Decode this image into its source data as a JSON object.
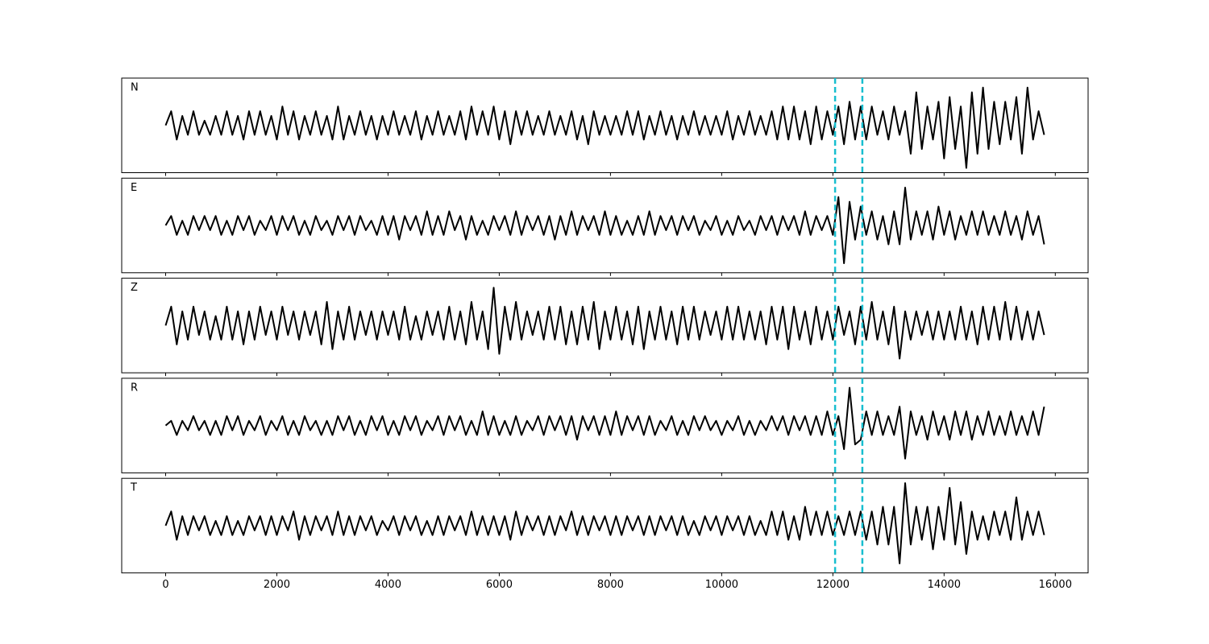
{
  "chart_data": {
    "type": "line",
    "x": [
      0,
      100,
      200,
      300,
      400,
      500,
      600,
      700,
      800,
      900,
      1000,
      1100,
      1200,
      1300,
      1400,
      1500,
      1600,
      1700,
      1800,
      1900,
      2000,
      2100,
      2200,
      2300,
      2400,
      2500,
      2600,
      2700,
      2800,
      2900,
      3000,
      3100,
      3200,
      3300,
      3400,
      3500,
      3600,
      3700,
      3800,
      3900,
      4000,
      4100,
      4200,
      4300,
      4400,
      4500,
      4600,
      4700,
      4800,
      4900,
      5000,
      5100,
      5200,
      5300,
      5400,
      5500,
      5600,
      5700,
      5800,
      5900,
      6000,
      6100,
      6200,
      6300,
      6400,
      6500,
      6600,
      6700,
      6800,
      6900,
      7000,
      7100,
      7200,
      7300,
      7400,
      7500,
      7600,
      7700,
      7800,
      7900,
      8000,
      8100,
      8200,
      8300,
      8400,
      8500,
      8600,
      8700,
      8800,
      8900,
      9000,
      9100,
      9200,
      9300,
      9400,
      9500,
      9600,
      9700,
      9800,
      9900,
      10000,
      10100,
      10200,
      10300,
      10400,
      10500,
      10600,
      10700,
      10800,
      10900,
      11000,
      11100,
      11200,
      11300,
      11400,
      11500,
      11600,
      11700,
      11800,
      11900,
      12000,
      12100,
      12200,
      12300,
      12400,
      12500,
      12600,
      12700,
      12800,
      12900,
      13000,
      13100,
      13200,
      13300,
      13400,
      13500,
      13600,
      13700,
      13800,
      13900,
      14000,
      14100,
      14200,
      14300,
      14400,
      14500,
      14600,
      14700,
      14800,
      14900,
      15000,
      15100,
      15200,
      15300,
      15400,
      15500,
      15600,
      15700,
      15800
    ],
    "xlim": [
      -790,
      16590
    ],
    "xticks": [
      0,
      2000,
      4000,
      6000,
      8000,
      10000,
      12000,
      14000,
      16000
    ],
    "ylim": [
      -1,
      1
    ],
    "color": "#000000",
    "marker_color": "#17becf",
    "markers": [
      12040,
      12530
    ],
    "panels": [
      {
        "label": "N",
        "values": [
          0,
          0.3,
          -0.3,
          0.2,
          -0.2,
          0.3,
          -0.2,
          0.1,
          -0.2,
          0.2,
          -0.2,
          0.3,
          -0.2,
          0.2,
          -0.3,
          0.3,
          -0.2,
          0.3,
          -0.2,
          0.2,
          -0.3,
          0.4,
          -0.2,
          0.3,
          -0.3,
          0.2,
          -0.2,
          0.3,
          -0.2,
          0.2,
          -0.3,
          0.4,
          -0.3,
          0.2,
          -0.2,
          0.3,
          -0.2,
          0.2,
          -0.3,
          0.2,
          -0.2,
          0.3,
          -0.2,
          0.2,
          -0.2,
          0.3,
          -0.3,
          0.2,
          -0.2,
          0.3,
          -0.2,
          0.2,
          -0.2,
          0.3,
          -0.3,
          0.4,
          -0.2,
          0.3,
          -0.2,
          0.4,
          -0.3,
          0.3,
          -0.4,
          0.3,
          -0.2,
          0.3,
          -0.2,
          0.2,
          -0.2,
          0.3,
          -0.2,
          0.2,
          -0.2,
          0.3,
          -0.3,
          0.2,
          -0.4,
          0.3,
          -0.2,
          0.2,
          -0.2,
          0.2,
          -0.2,
          0.3,
          -0.2,
          0.3,
          -0.3,
          0.2,
          -0.2,
          0.3,
          -0.2,
          0.2,
          -0.3,
          0.2,
          -0.2,
          0.3,
          -0.2,
          0.2,
          -0.2,
          0.2,
          -0.2,
          0.3,
          -0.3,
          0.2,
          -0.2,
          0.3,
          -0.2,
          0.2,
          -0.2,
          0.3,
          -0.3,
          0.4,
          -0.3,
          0.4,
          -0.3,
          0.3,
          -0.4,
          0.4,
          -0.3,
          0.3,
          -0.2,
          0.4,
          -0.4,
          0.5,
          -0.3,
          0.4,
          -0.3,
          0.4,
          -0.2,
          0.3,
          -0.3,
          0.4,
          -0.2,
          0.3,
          -0.6,
          0.7,
          -0.5,
          0.4,
          -0.3,
          0.5,
          -0.7,
          0.6,
          -0.5,
          0.4,
          -0.9,
          0.7,
          -0.6,
          0.8,
          -0.5,
          0.5,
          -0.4,
          0.5,
          -0.3,
          0.6,
          -0.6,
          0.8,
          -0.3,
          0.3,
          -0.2
        ]
      },
      {
        "label": "E",
        "values": [
          0,
          0.2,
          -0.2,
          0.1,
          -0.2,
          0.2,
          -0.1,
          0.2,
          -0.1,
          0.2,
          -0.2,
          0.1,
          -0.2,
          0.2,
          -0.1,
          0.2,
          -0.2,
          0.1,
          -0.1,
          0.2,
          -0.2,
          0.2,
          -0.1,
          0.2,
          -0.2,
          0.1,
          -0.2,
          0.2,
          -0.1,
          0.1,
          -0.2,
          0.2,
          -0.1,
          0.2,
          -0.2,
          0.2,
          -0.1,
          0.1,
          -0.2,
          0.2,
          -0.2,
          0.2,
          -0.3,
          0.2,
          -0.1,
          0.2,
          -0.2,
          0.3,
          -0.2,
          0.2,
          -0.2,
          0.3,
          -0.1,
          0.2,
          -0.3,
          0.2,
          -0.2,
          0.1,
          -0.2,
          0.2,
          -0.1,
          0.2,
          -0.2,
          0.3,
          -0.2,
          0.2,
          -0.1,
          0.2,
          -0.2,
          0.2,
          -0.3,
          0.2,
          -0.2,
          0.3,
          -0.2,
          0.2,
          -0.1,
          0.2,
          -0.2,
          0.3,
          -0.2,
          0.2,
          -0.2,
          0.1,
          -0.2,
          0.2,
          -0.2,
          0.3,
          -0.2,
          0.2,
          -0.1,
          0.2,
          -0.2,
          0.2,
          -0.1,
          0.2,
          -0.2,
          0.1,
          -0.1,
          0.2,
          -0.2,
          0.1,
          -0.2,
          0.2,
          -0.1,
          0.1,
          -0.2,
          0.2,
          -0.1,
          0.2,
          -0.2,
          0.2,
          -0.1,
          0.2,
          -0.2,
          0.3,
          -0.2,
          0.2,
          -0.1,
          0.2,
          -0.2,
          0.6,
          -0.8,
          0.5,
          -0.3,
          0.4,
          -0.2,
          0.3,
          -0.3,
          0.2,
          -0.4,
          0.3,
          -0.4,
          0.8,
          -0.3,
          0.3,
          -0.2,
          0.3,
          -0.3,
          0.4,
          -0.2,
          0.3,
          -0.3,
          0.2,
          -0.2,
          0.3,
          -0.2,
          0.3,
          -0.2,
          0.2,
          -0.2,
          0.3,
          -0.2,
          0.2,
          -0.3,
          0.3,
          -0.2,
          0.2,
          -0.4
        ]
      },
      {
        "label": "Z",
        "values": [
          0,
          0.4,
          -0.4,
          0.3,
          -0.3,
          0.4,
          -0.2,
          0.3,
          -0.3,
          0.2,
          -0.3,
          0.4,
          -0.3,
          0.3,
          -0.4,
          0.3,
          -0.3,
          0.4,
          -0.2,
          0.3,
          -0.3,
          0.4,
          -0.2,
          0.3,
          -0.3,
          0.3,
          -0.2,
          0.3,
          -0.4,
          0.5,
          -0.5,
          0.3,
          -0.3,
          0.4,
          -0.3,
          0.3,
          -0.2,
          0.3,
          -0.3,
          0.3,
          -0.2,
          0.3,
          -0.3,
          0.4,
          -0.3,
          0.2,
          -0.3,
          0.3,
          -0.2,
          0.3,
          -0.3,
          0.4,
          -0.3,
          0.3,
          -0.4,
          0.5,
          -0.3,
          0.3,
          -0.5,
          0.8,
          -0.6,
          0.4,
          -0.3,
          0.5,
          -0.3,
          0.3,
          -0.2,
          0.3,
          -0.3,
          0.4,
          -0.3,
          0.4,
          -0.4,
          0.3,
          -0.4,
          0.4,
          -0.3,
          0.5,
          -0.5,
          0.3,
          -0.3,
          0.4,
          -0.3,
          0.3,
          -0.4,
          0.4,
          -0.5,
          0.3,
          -0.3,
          0.4,
          -0.3,
          0.3,
          -0.4,
          0.4,
          -0.3,
          0.4,
          -0.3,
          0.3,
          -0.2,
          0.3,
          -0.3,
          0.4,
          -0.3,
          0.4,
          -0.3,
          0.3,
          -0.3,
          0.3,
          -0.4,
          0.4,
          -0.3,
          0.4,
          -0.5,
          0.4,
          -0.3,
          0.3,
          -0.4,
          0.4,
          -0.3,
          0.3,
          -0.3,
          0.4,
          -0.2,
          0.3,
          -0.4,
          0.4,
          -0.3,
          0.5,
          -0.3,
          0.3,
          -0.4,
          0.4,
          -0.7,
          0.3,
          -0.3,
          0.3,
          -0.2,
          0.3,
          -0.3,
          0.3,
          -0.3,
          0.3,
          -0.3,
          0.4,
          -0.3,
          0.3,
          -0.4,
          0.4,
          -0.3,
          0.4,
          -0.3,
          0.5,
          -0.3,
          0.4,
          -0.3,
          0.3,
          -0.3,
          0.3,
          -0.2
        ]
      },
      {
        "label": "R",
        "values": [
          0,
          0.1,
          -0.2,
          0.1,
          -0.1,
          0.2,
          -0.1,
          0.1,
          -0.2,
          0.1,
          -0.2,
          0.2,
          -0.1,
          0.2,
          -0.2,
          0.1,
          -0.1,
          0.2,
          -0.2,
          0.1,
          -0.1,
          0.2,
          -0.2,
          0.1,
          -0.2,
          0.2,
          -0.1,
          0.1,
          -0.2,
          0.1,
          -0.2,
          0.2,
          -0.1,
          0.2,
          -0.2,
          0.1,
          -0.2,
          0.2,
          -0.1,
          0.2,
          -0.2,
          0.1,
          -0.2,
          0.2,
          -0.1,
          0.2,
          -0.2,
          0.1,
          -0.1,
          0.2,
          -0.2,
          0.2,
          -0.1,
          0.2,
          -0.2,
          0.1,
          -0.2,
          0.3,
          -0.2,
          0.2,
          -0.2,
          0.1,
          -0.2,
          0.2,
          -0.2,
          0.1,
          -0.1,
          0.2,
          -0.2,
          0.2,
          -0.1,
          0.2,
          -0.2,
          0.2,
          -0.3,
          0.2,
          -0.1,
          0.2,
          -0.2,
          0.2,
          -0.2,
          0.3,
          -0.2,
          0.2,
          -0.1,
          0.2,
          -0.2,
          0.2,
          -0.2,
          0.1,
          -0.1,
          0.2,
          -0.2,
          0.1,
          -0.2,
          0.2,
          -0.1,
          0.2,
          -0.1,
          0.1,
          -0.2,
          0.1,
          -0.1,
          0.2,
          -0.2,
          0.1,
          -0.2,
          0.1,
          -0.1,
          0.2,
          -0.1,
          0.2,
          -0.2,
          0.2,
          -0.1,
          0.2,
          -0.2,
          0.2,
          -0.2,
          0.3,
          -0.2,
          0.2,
          -0.5,
          0.8,
          -0.4,
          -0.3,
          0.3,
          -0.2,
          0.3,
          -0.2,
          0.2,
          -0.2,
          0.4,
          -0.7,
          0.3,
          -0.2,
          0.2,
          -0.3,
          0.3,
          -0.2,
          0.2,
          -0.3,
          0.3,
          -0.2,
          0.3,
          -0.3,
          0.2,
          -0.2,
          0.3,
          -0.2,
          0.2,
          -0.2,
          0.3,
          -0.2,
          0.2,
          -0.2,
          0.3,
          -0.2,
          0.4
        ]
      },
      {
        "label": "T",
        "values": [
          0,
          0.3,
          -0.3,
          0.2,
          -0.2,
          0.2,
          -0.1,
          0.2,
          -0.2,
          0.1,
          -0.2,
          0.2,
          -0.2,
          0.1,
          -0.2,
          0.2,
          -0.1,
          0.2,
          -0.2,
          0.2,
          -0.2,
          0.2,
          -0.1,
          0.3,
          -0.3,
          0.2,
          -0.2,
          0.2,
          -0.1,
          0.2,
          -0.2,
          0.3,
          -0.2,
          0.2,
          -0.2,
          0.2,
          -0.1,
          0.2,
          -0.2,
          0.1,
          -0.1,
          0.2,
          -0.2,
          0.2,
          -0.1,
          0.2,
          -0.2,
          0.1,
          -0.2,
          0.2,
          -0.2,
          0.2,
          -0.1,
          0.2,
          -0.2,
          0.3,
          -0.2,
          0.2,
          -0.2,
          0.2,
          -0.2,
          0.2,
          -0.3,
          0.3,
          -0.2,
          0.2,
          -0.1,
          0.2,
          -0.2,
          0.2,
          -0.2,
          0.2,
          -0.1,
          0.3,
          -0.2,
          0.2,
          -0.2,
          0.2,
          -0.1,
          0.2,
          -0.2,
          0.2,
          -0.2,
          0.2,
          -0.1,
          0.2,
          -0.2,
          0.2,
          -0.2,
          0.2,
          -0.1,
          0.2,
          -0.2,
          0.2,
          -0.2,
          0.1,
          -0.2,
          0.2,
          -0.1,
          0.2,
          -0.2,
          0.2,
          -0.1,
          0.2,
          -0.2,
          0.2,
          -0.2,
          0.1,
          -0.2,
          0.3,
          -0.2,
          0.3,
          -0.3,
          0.2,
          -0.3,
          0.4,
          -0.2,
          0.3,
          -0.2,
          0.3,
          -0.2,
          0.2,
          -0.2,
          0.3,
          -0.2,
          0.3,
          -0.3,
          0.3,
          -0.4,
          0.4,
          -0.4,
          0.4,
          -0.8,
          0.9,
          -0.4,
          0.4,
          -0.3,
          0.4,
          -0.5,
          0.4,
          -0.3,
          0.8,
          -0.4,
          0.5,
          -0.6,
          0.3,
          -0.3,
          0.2,
          -0.3,
          0.3,
          -0.2,
          0.3,
          -0.3,
          0.6,
          -0.3,
          0.3,
          -0.2,
          0.3,
          -0.2
        ]
      }
    ]
  }
}
